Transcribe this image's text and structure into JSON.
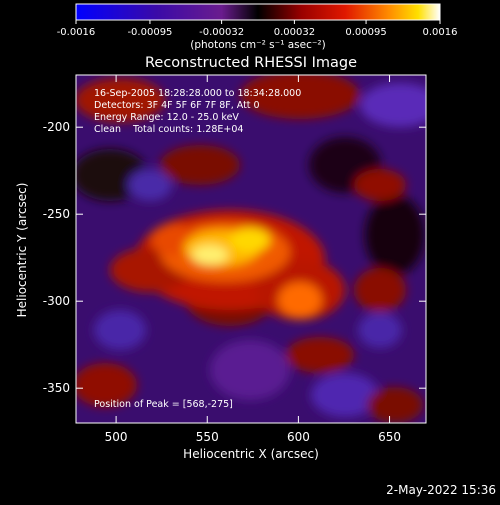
{
  "colorbar": {
    "ticks": [
      "-0.0016",
      "-0.00095",
      "-0.00032",
      "0.00032",
      "0.00095",
      "0.0016"
    ],
    "tick_values": [
      -0.0016,
      -0.00095,
      -0.00032,
      0.00032,
      0.00095,
      0.0016
    ],
    "range": [
      -0.0016,
      0.0016
    ],
    "units_label": "(photons cm⁻² s⁻¹ asec⁻²)",
    "colors": [
      "#0000ff",
      "#3a0aa8",
      "#6a1c8e",
      "#000000",
      "#8a0000",
      "#d41000",
      "#ff7a00",
      "#ffd400",
      "#ffffff"
    ]
  },
  "chart_data": {
    "type": "heatmap",
    "title": "Reconstructed RHESSI Image",
    "xlabel": "Heliocentric X (arcsec)",
    "ylabel": "Heliocentric Y (arcsec)",
    "xlim": [
      478,
      670
    ],
    "ylim": [
      -370,
      -170
    ],
    "x_ticks": [
      500,
      550,
      600,
      650
    ],
    "y_ticks": [
      -350,
      -300,
      -250,
      -200
    ],
    "peak": [
      568,
      -275
    ],
    "annotations": [
      "16-Sep-2005 18:28:28.000 to 18:34:28.000",
      "Detectors: 3F 4F 5F 6F 7F 8F, Att 0",
      "Energy Range: 12.0 - 25.0 keV",
      "Clean    Total counts: 1.28E+04"
    ],
    "peak_label": "Position of Peak = [568,-275]"
  },
  "footer": {
    "timestamp": "2-May-2022 15:36"
  }
}
